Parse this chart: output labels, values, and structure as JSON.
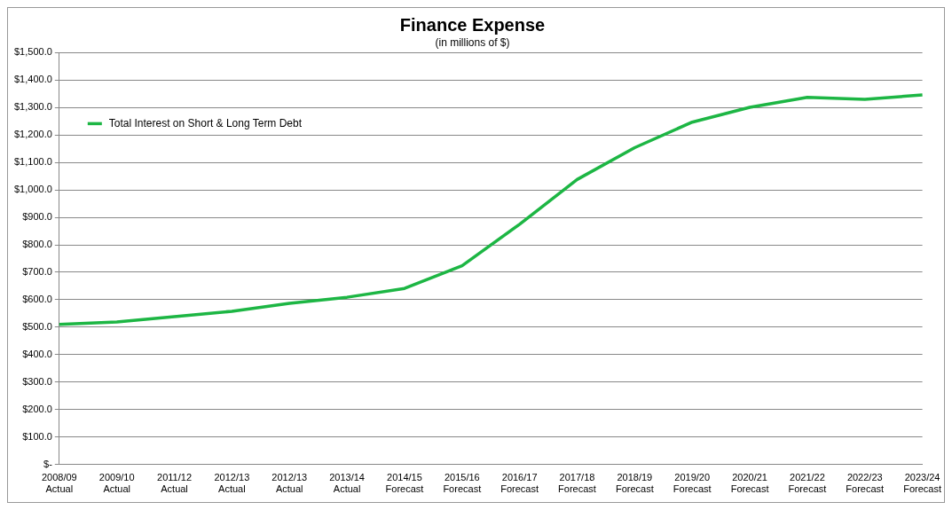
{
  "chart_data": {
    "type": "line",
    "title": "Finance Expense",
    "subtitle": "(in millions of $)",
    "categories": [
      "2008/09\nActual",
      "2009/10\nActual",
      "2011/12\nActual",
      "2012/13\nActual",
      "2012/13\nActual",
      "2013/14\nActual",
      "2014/15\nForecast",
      "2015/16\nForecast",
      "2016/17\nForecast",
      "2017/18\nForecast",
      "2018/19\nForecast",
      "2019/20\nForecast",
      "2020/21\nForecast",
      "2021/22\nForecast",
      "2022/23\nForecast",
      "2023/24\nForecast"
    ],
    "series": [
      {
        "name": "Total Interest on Short & Long Term Debt",
        "color": "#1db644",
        "values": [
          510,
          519,
          538,
          558,
          587,
          609,
          641,
          724,
          875,
          1038,
          1154,
          1247,
          1301,
          1337,
          1330,
          1346
        ]
      }
    ],
    "ylim": [
      0,
      1500
    ],
    "yticks": [
      {
        "value": 0,
        "label": "$-"
      },
      {
        "value": 100,
        "label": "$100.0"
      },
      {
        "value": 200,
        "label": "$200.0"
      },
      {
        "value": 300,
        "label": "$300.0"
      },
      {
        "value": 400,
        "label": "$400.0"
      },
      {
        "value": 500,
        "label": "$500.0"
      },
      {
        "value": 600,
        "label": "$600.0"
      },
      {
        "value": 700,
        "label": "$700.0"
      },
      {
        "value": 800,
        "label": "$800.0"
      },
      {
        "value": 900,
        "label": "$900.0"
      },
      {
        "value": 1000,
        "label": "$1,000.0"
      },
      {
        "value": 1100,
        "label": "$1,100.0"
      },
      {
        "value": 1200,
        "label": "$1,200.0"
      },
      {
        "value": 1300,
        "label": "$1,300.0"
      },
      {
        "value": 1400,
        "label": "$1,400.0"
      },
      {
        "value": 1500,
        "label": "$1,500.0"
      }
    ],
    "grid": "y",
    "legend": "top left",
    "marker": "none",
    "line_style": "solid"
  }
}
